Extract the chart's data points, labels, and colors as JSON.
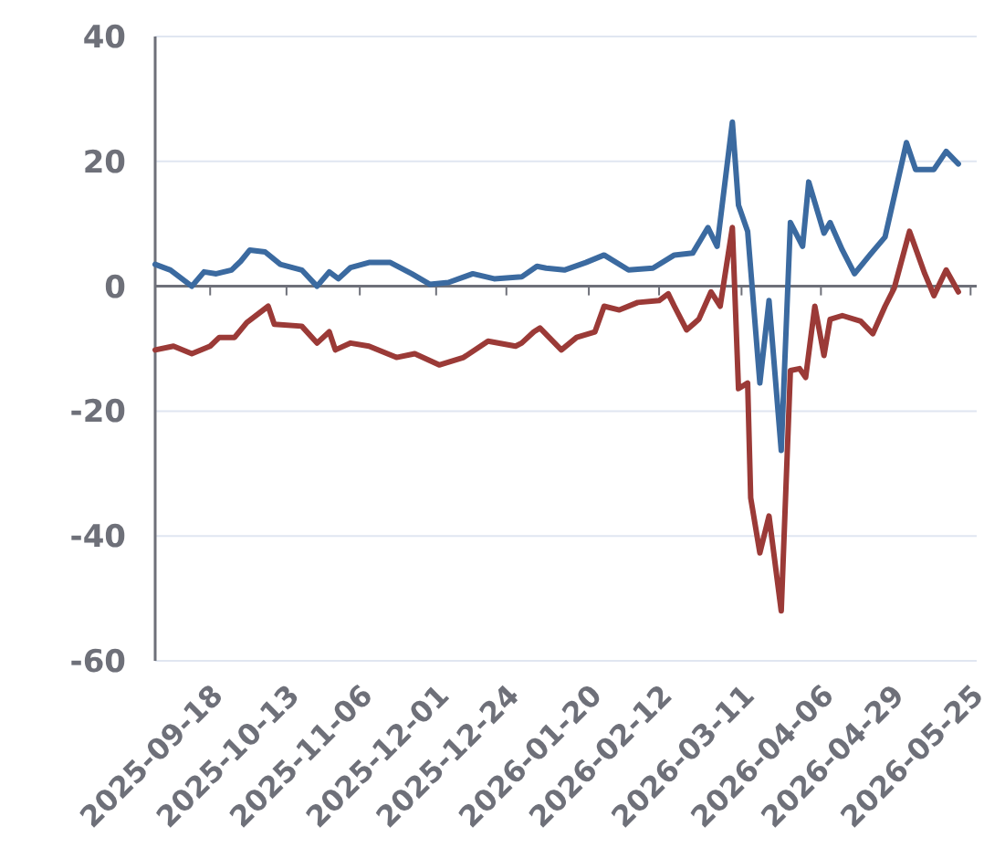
{
  "chart_data": {
    "type": "line",
    "xlim": [
      "2025-08-31",
      "2026-05-27"
    ],
    "xticks": [
      "2025-09-18",
      "2025-10-13",
      "2025-11-06",
      "2025-12-01",
      "2025-12-24",
      "2026-01-20",
      "2026-02-12",
      "2026-03-11",
      "2026-04-06",
      "2026-04-29",
      "2026-05-25"
    ],
    "ylim": [
      -60,
      40
    ],
    "yticks": [
      -60,
      -40,
      -20,
      0,
      20,
      40
    ],
    "grid": "y",
    "marker": "none",
    "line_style": "solid",
    "series": [
      {
        "color": "#3b6aa0",
        "x": [
          "2025-08-31",
          "2025-09-05",
          "2025-09-12",
          "2025-09-16",
          "2025-09-20",
          "2025-09-25",
          "2025-09-28",
          "2025-10-01",
          "2025-10-06",
          "2025-10-11",
          "2025-10-18",
          "2025-10-23",
          "2025-10-27",
          "2025-10-30",
          "2025-11-03",
          "2025-11-09",
          "2025-11-16",
          "2025-11-23",
          "2025-11-29",
          "2025-12-05",
          "2025-12-13",
          "2025-12-20",
          "2025-12-29",
          "2026-01-03",
          "2026-01-06",
          "2026-01-12",
          "2026-01-19",
          "2026-01-25",
          "2026-02-02",
          "2026-02-10",
          "2026-02-17",
          "2026-02-23",
          "2026-02-28",
          "2026-03-03",
          "2026-03-08",
          "2026-03-10",
          "2026-03-13",
          "2026-03-17",
          "2026-03-20",
          "2026-03-24",
          "2026-03-27",
          "2026-03-31",
          "2026-04-02",
          "2026-04-07",
          "2026-04-09",
          "2026-04-13",
          "2026-04-17",
          "2026-04-22",
          "2026-04-27",
          "2026-05-04",
          "2026-05-07",
          "2026-05-13",
          "2026-05-17",
          "2026-05-21"
        ],
        "values": [
          3.5,
          2.6,
          0,
          2.3,
          2,
          2.6,
          4,
          5.8,
          5.5,
          3.5,
          2.6,
          0,
          2.3,
          1.2,
          3,
          3.8,
          3.8,
          2,
          0.3,
          0.6,
          2,
          1.2,
          1.5,
          3.2,
          2.9,
          2.6,
          3.8,
          5,
          2.6,
          2.9,
          5,
          5.3,
          9.4,
          6.4,
          26.3,
          13,
          8.8,
          -15.5,
          -2.3,
          -26.3,
          10.2,
          6.4,
          16.7,
          8.5,
          10.2,
          5.8,
          2,
          5,
          7.9,
          23,
          18.7,
          18.7,
          21.6,
          19.6
        ]
      },
      {
        "color": "#9b3a37",
        "x": [
          "2025-08-31",
          "2025-09-06",
          "2025-09-12",
          "2025-09-18",
          "2025-09-21",
          "2025-09-26",
          "2025-09-30",
          "2025-10-07",
          "2025-10-09",
          "2025-10-18",
          "2025-10-23",
          "2025-10-27",
          "2025-10-29",
          "2025-11-03",
          "2025-11-09",
          "2025-11-18",
          "2025-11-24",
          "2025-12-02",
          "2025-12-10",
          "2025-12-18",
          "2025-12-27",
          "2025-12-29",
          "2026-01-02",
          "2026-01-04",
          "2026-01-11",
          "2026-01-16",
          "2026-01-22",
          "2026-01-25",
          "2026-01-30",
          "2026-02-05",
          "2026-02-12",
          "2026-02-15",
          "2026-02-17",
          "2026-02-21",
          "2026-02-25",
          "2026-03-01",
          "2026-03-04",
          "2026-03-08",
          "2026-03-10",
          "2026-03-13",
          "2026-03-14",
          "2026-03-17",
          "2026-03-20",
          "2026-03-24",
          "2026-03-27",
          "2026-03-30",
          "2026-04-01",
          "2026-04-04",
          "2026-04-07",
          "2026-04-09",
          "2026-04-13",
          "2026-04-19",
          "2026-04-23",
          "2026-04-27",
          "2026-04-30",
          "2026-05-05",
          "2026-05-10",
          "2026-05-13",
          "2026-05-17",
          "2026-05-21"
        ],
        "values": [
          -10.2,
          -9.6,
          -10.8,
          -9.6,
          -8.2,
          -8.2,
          -5.8,
          -3.2,
          -6.1,
          -6.4,
          -9.1,
          -7.3,
          -10.2,
          -9.1,
          -9.6,
          -11.4,
          -10.8,
          -12.6,
          -11.4,
          -8.8,
          -9.6,
          -9.1,
          -7.3,
          -6.7,
          -10.2,
          -8.2,
          -7.3,
          -3.2,
          -3.8,
          -2.6,
          -2.3,
          -1.2,
          -3.2,
          -7,
          -5.3,
          -0.9,
          -3.2,
          9.4,
          -16.4,
          -15.5,
          -33.9,
          -42.7,
          -36.8,
          -52,
          -13.5,
          -13.2,
          -14.6,
          -3.2,
          -11.1,
          -5.3,
          -4.7,
          -5.6,
          -7.6,
          -3.2,
          -0.3,
          8.8,
          2,
          -1.5,
          2.6,
          -0.9
        ]
      }
    ]
  }
}
